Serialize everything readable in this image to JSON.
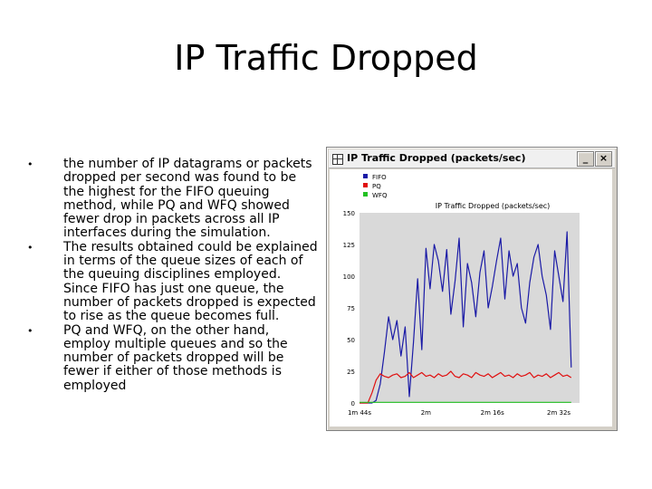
{
  "slide": {
    "title": "IP Traffic Dropped",
    "bullet_glyph": "•",
    "bullets": [
      "the number of IP datagrams or packets dropped per second was found to be the highest for the FIFO queuing method, while PQ and WFQ showed fewer drop in packets across all IP interfaces during the simulation.",
      "The results obtained could be explained in terms of the queue sizes of each of the queuing disciplines employed. Since FIFO has just one queue, the number of packets dropped is expected to rise as the queue becomes full.",
      "PQ and WFQ, on the other hand, employ multiple queues and so the number of packets dropped will be fewer if either of those methods is employed"
    ]
  },
  "window": {
    "title": "IP Traffic Dropped (packets/sec)",
    "icon": "app-grid-icon",
    "minimize_glyph": "_",
    "close_glyph": "×"
  },
  "chart_data": {
    "type": "line",
    "title": "IP Traffic Dropped (packets/sec)",
    "xlabel": "",
    "ylabel": "",
    "ylim": [
      0,
      150
    ],
    "yticks": [
      0,
      25,
      50,
      75,
      100,
      125,
      150
    ],
    "xlim": [
      104,
      157
    ],
    "xticks": [
      {
        "value": 104,
        "label": "1m 44s"
      },
      {
        "value": 120,
        "label": "2m"
      },
      {
        "value": 136,
        "label": "2m 16s"
      },
      {
        "value": 152,
        "label": "2m 32s"
      }
    ],
    "grid": false,
    "plot_background": "#d9d9d9",
    "legend": "top-left",
    "series": [
      {
        "name": "FIFO",
        "color": "#1a1aa6",
        "x": [
          104,
          106,
          107,
          108,
          109,
          110,
          111,
          112,
          113,
          114,
          115,
          116,
          117,
          118,
          119,
          120,
          121,
          122,
          123,
          124,
          125,
          126,
          127,
          128,
          129,
          130,
          131,
          132,
          133,
          134,
          135,
          136,
          137,
          138,
          139,
          140,
          141,
          142,
          143,
          144,
          145,
          146,
          147,
          148,
          149,
          150,
          151,
          152,
          153,
          154,
          155
        ],
        "values": [
          0,
          0,
          0,
          2,
          15,
          40,
          68,
          50,
          65,
          37,
          60,
          5,
          48,
          98,
          42,
          122,
          90,
          125,
          112,
          88,
          121,
          70,
          96,
          130,
          60,
          110,
          95,
          68,
          103,
          120,
          75,
          92,
          112,
          130,
          82,
          120,
          100,
          110,
          75,
          63,
          95,
          115,
          125,
          100,
          85,
          58,
          120,
          100,
          80,
          135,
          28
        ]
      },
      {
        "name": "PQ",
        "color": "#e01010",
        "x": [
          104,
          106,
          107,
          108,
          109,
          110,
          111,
          112,
          113,
          114,
          115,
          116,
          117,
          118,
          119,
          120,
          121,
          122,
          123,
          124,
          125,
          126,
          127,
          128,
          129,
          130,
          131,
          132,
          133,
          134,
          135,
          136,
          137,
          138,
          139,
          140,
          141,
          142,
          143,
          144,
          145,
          146,
          147,
          148,
          149,
          150,
          151,
          152,
          153,
          154,
          155
        ],
        "values": [
          0,
          0,
          8,
          18,
          23,
          21,
          20,
          22,
          23,
          20,
          21,
          24,
          20,
          22,
          24,
          21,
          22,
          20,
          23,
          21,
          22,
          25,
          21,
          20,
          23,
          22,
          20,
          24,
          22,
          21,
          23,
          20,
          22,
          24,
          21,
          22,
          20,
          23,
          21,
          22,
          24,
          20,
          22,
          21,
          23,
          20,
          22,
          24,
          21,
          22,
          20
        ]
      },
      {
        "name": "WFQ",
        "color": "#22c022",
        "x": [
          104,
          155
        ],
        "values": [
          0.5,
          0.5
        ]
      }
    ]
  }
}
